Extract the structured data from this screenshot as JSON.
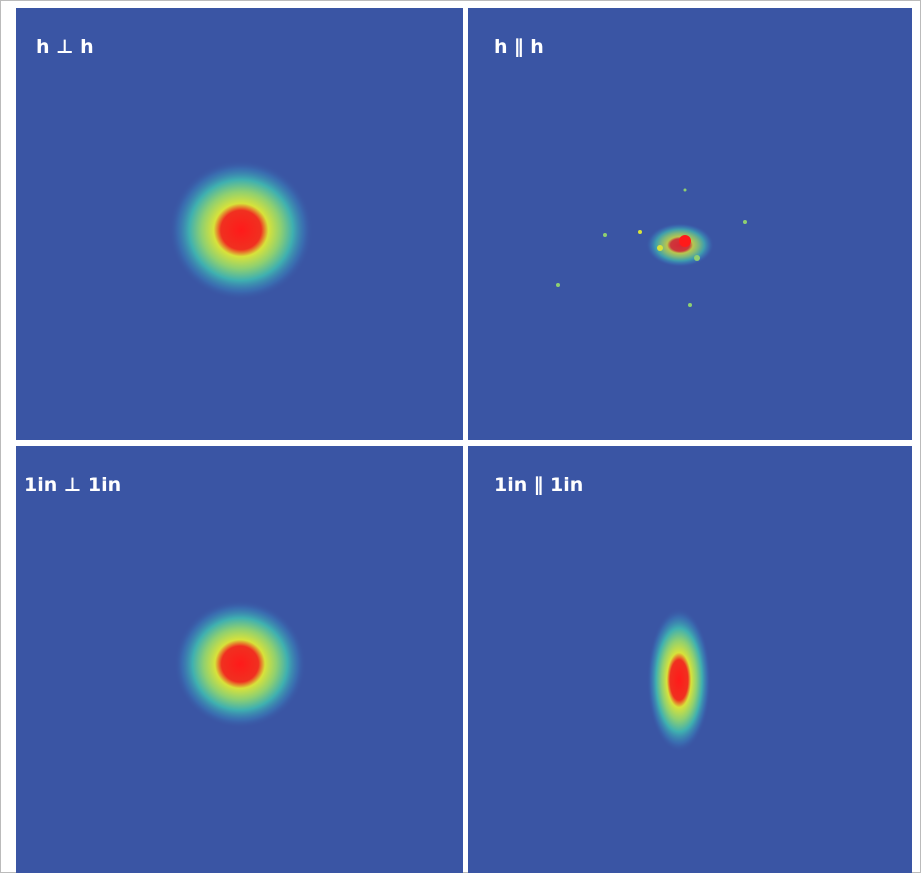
{
  "panels": [
    {
      "label": "h ⊥ h"
    },
    {
      "label": "h ∥ h"
    },
    {
      "label": "1in ⊥ 1in"
    },
    {
      "label": "1in ∥ 1in"
    }
  ]
}
